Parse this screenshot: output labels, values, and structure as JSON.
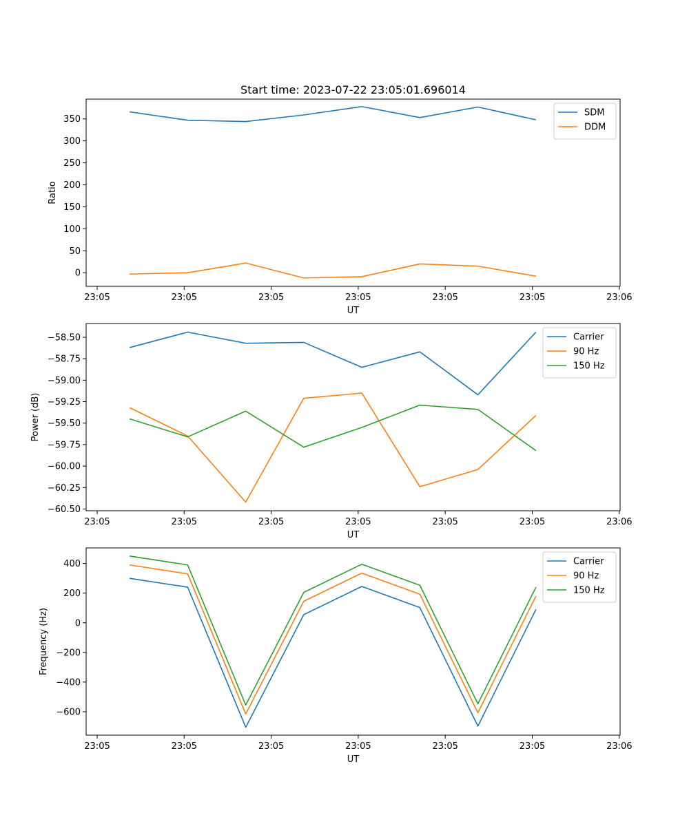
{
  "figure_title": "Start time: 2023-07-22 23:05:01.696014",
  "chart_data": [
    {
      "type": "line",
      "name": "ratio",
      "title": "Start time: 2023-07-22 23:05:01.696014",
      "xlabel": "UT",
      "ylabel": "Ratio",
      "x_tick_labels": [
        "23:05",
        "23:05",
        "23:05",
        "23:05",
        "23:05",
        "23:05",
        "23:06"
      ],
      "x": [
        1,
        2,
        3,
        4,
        5,
        6,
        7,
        8
      ],
      "xlim": [
        0.25,
        9.45
      ],
      "ylim": [
        -31,
        395
      ],
      "yticks": [
        0,
        50,
        100,
        150,
        200,
        250,
        300,
        350
      ],
      "ytick_labels": [
        "0",
        "50",
        "100",
        "150",
        "200",
        "250",
        "300",
        "350"
      ],
      "legend_position": "top-right",
      "series": [
        {
          "name": "SDM",
          "color": "#1f77b4",
          "values": [
            366,
            347,
            344,
            359,
            378,
            353,
            377,
            348
          ]
        },
        {
          "name": "DDM",
          "color": "#ff7f0e",
          "values": [
            -3,
            0,
            22,
            -12,
            -9,
            20,
            15,
            -8
          ]
        }
      ]
    },
    {
      "type": "line",
      "name": "power",
      "xlabel": "UT",
      "ylabel": "Power (dB)",
      "x_tick_labels": [
        "23:05",
        "23:05",
        "23:05",
        "23:05",
        "23:05",
        "23:05",
        "23:06"
      ],
      "x": [
        1,
        2,
        3,
        4,
        5,
        6,
        7,
        8
      ],
      "xlim": [
        0.25,
        9.45
      ],
      "ylim": [
        -60.52,
        -58.34
      ],
      "yticks": [
        -60.5,
        -60.25,
        -60.0,
        -59.75,
        -59.5,
        -59.25,
        -59.0,
        -58.75,
        -58.5
      ],
      "ytick_labels": [
        "−60.50",
        "−60.25",
        "−60.00",
        "−59.75",
        "−59.50",
        "−59.25",
        "−59.00",
        "−58.75",
        "−58.50"
      ],
      "legend_position": "top-right",
      "series": [
        {
          "name": "Carrier",
          "color": "#1f77b4",
          "values": [
            -58.62,
            -58.44,
            -58.57,
            -58.56,
            -58.85,
            -58.67,
            -59.17,
            -58.44
          ]
        },
        {
          "name": "90 Hz",
          "color": "#ff7f0e",
          "values": [
            -59.32,
            -59.65,
            -60.42,
            -59.21,
            -59.15,
            -60.24,
            -60.04,
            -59.41
          ]
        },
        {
          "name": "150 Hz",
          "color": "#2ca02c",
          "values": [
            -59.45,
            -59.66,
            -59.36,
            -59.78,
            -59.55,
            -59.29,
            -59.34,
            -59.82
          ]
        }
      ]
    },
    {
      "type": "line",
      "name": "frequency",
      "xlabel": "UT",
      "ylabel": "Frequency (Hz)",
      "x_tick_labels": [
        "23:05",
        "23:05",
        "23:05",
        "23:05",
        "23:05",
        "23:05",
        "23:06"
      ],
      "x": [
        1,
        2,
        3,
        4,
        5,
        6,
        7,
        8
      ],
      "xlim": [
        0.25,
        9.45
      ],
      "ylim": [
        -758,
        505
      ],
      "yticks": [
        -600,
        -400,
        -200,
        0,
        200,
        400
      ],
      "ytick_labels": [
        "−600",
        "−400",
        "−200",
        "0",
        "200",
        "400"
      ],
      "legend_position": "top-right",
      "series": [
        {
          "name": "Carrier",
          "color": "#1f77b4",
          "values": [
            300,
            240,
            -705,
            55,
            245,
            103,
            -697,
            90
          ]
        },
        {
          "name": "90 Hz",
          "color": "#ff7f0e",
          "values": [
            390,
            330,
            -615,
            145,
            335,
            193,
            -607,
            180
          ]
        },
        {
          "name": "150 Hz",
          "color": "#2ca02c",
          "values": [
            450,
            390,
            -555,
            205,
            395,
            253,
            -547,
            240
          ]
        }
      ]
    }
  ]
}
